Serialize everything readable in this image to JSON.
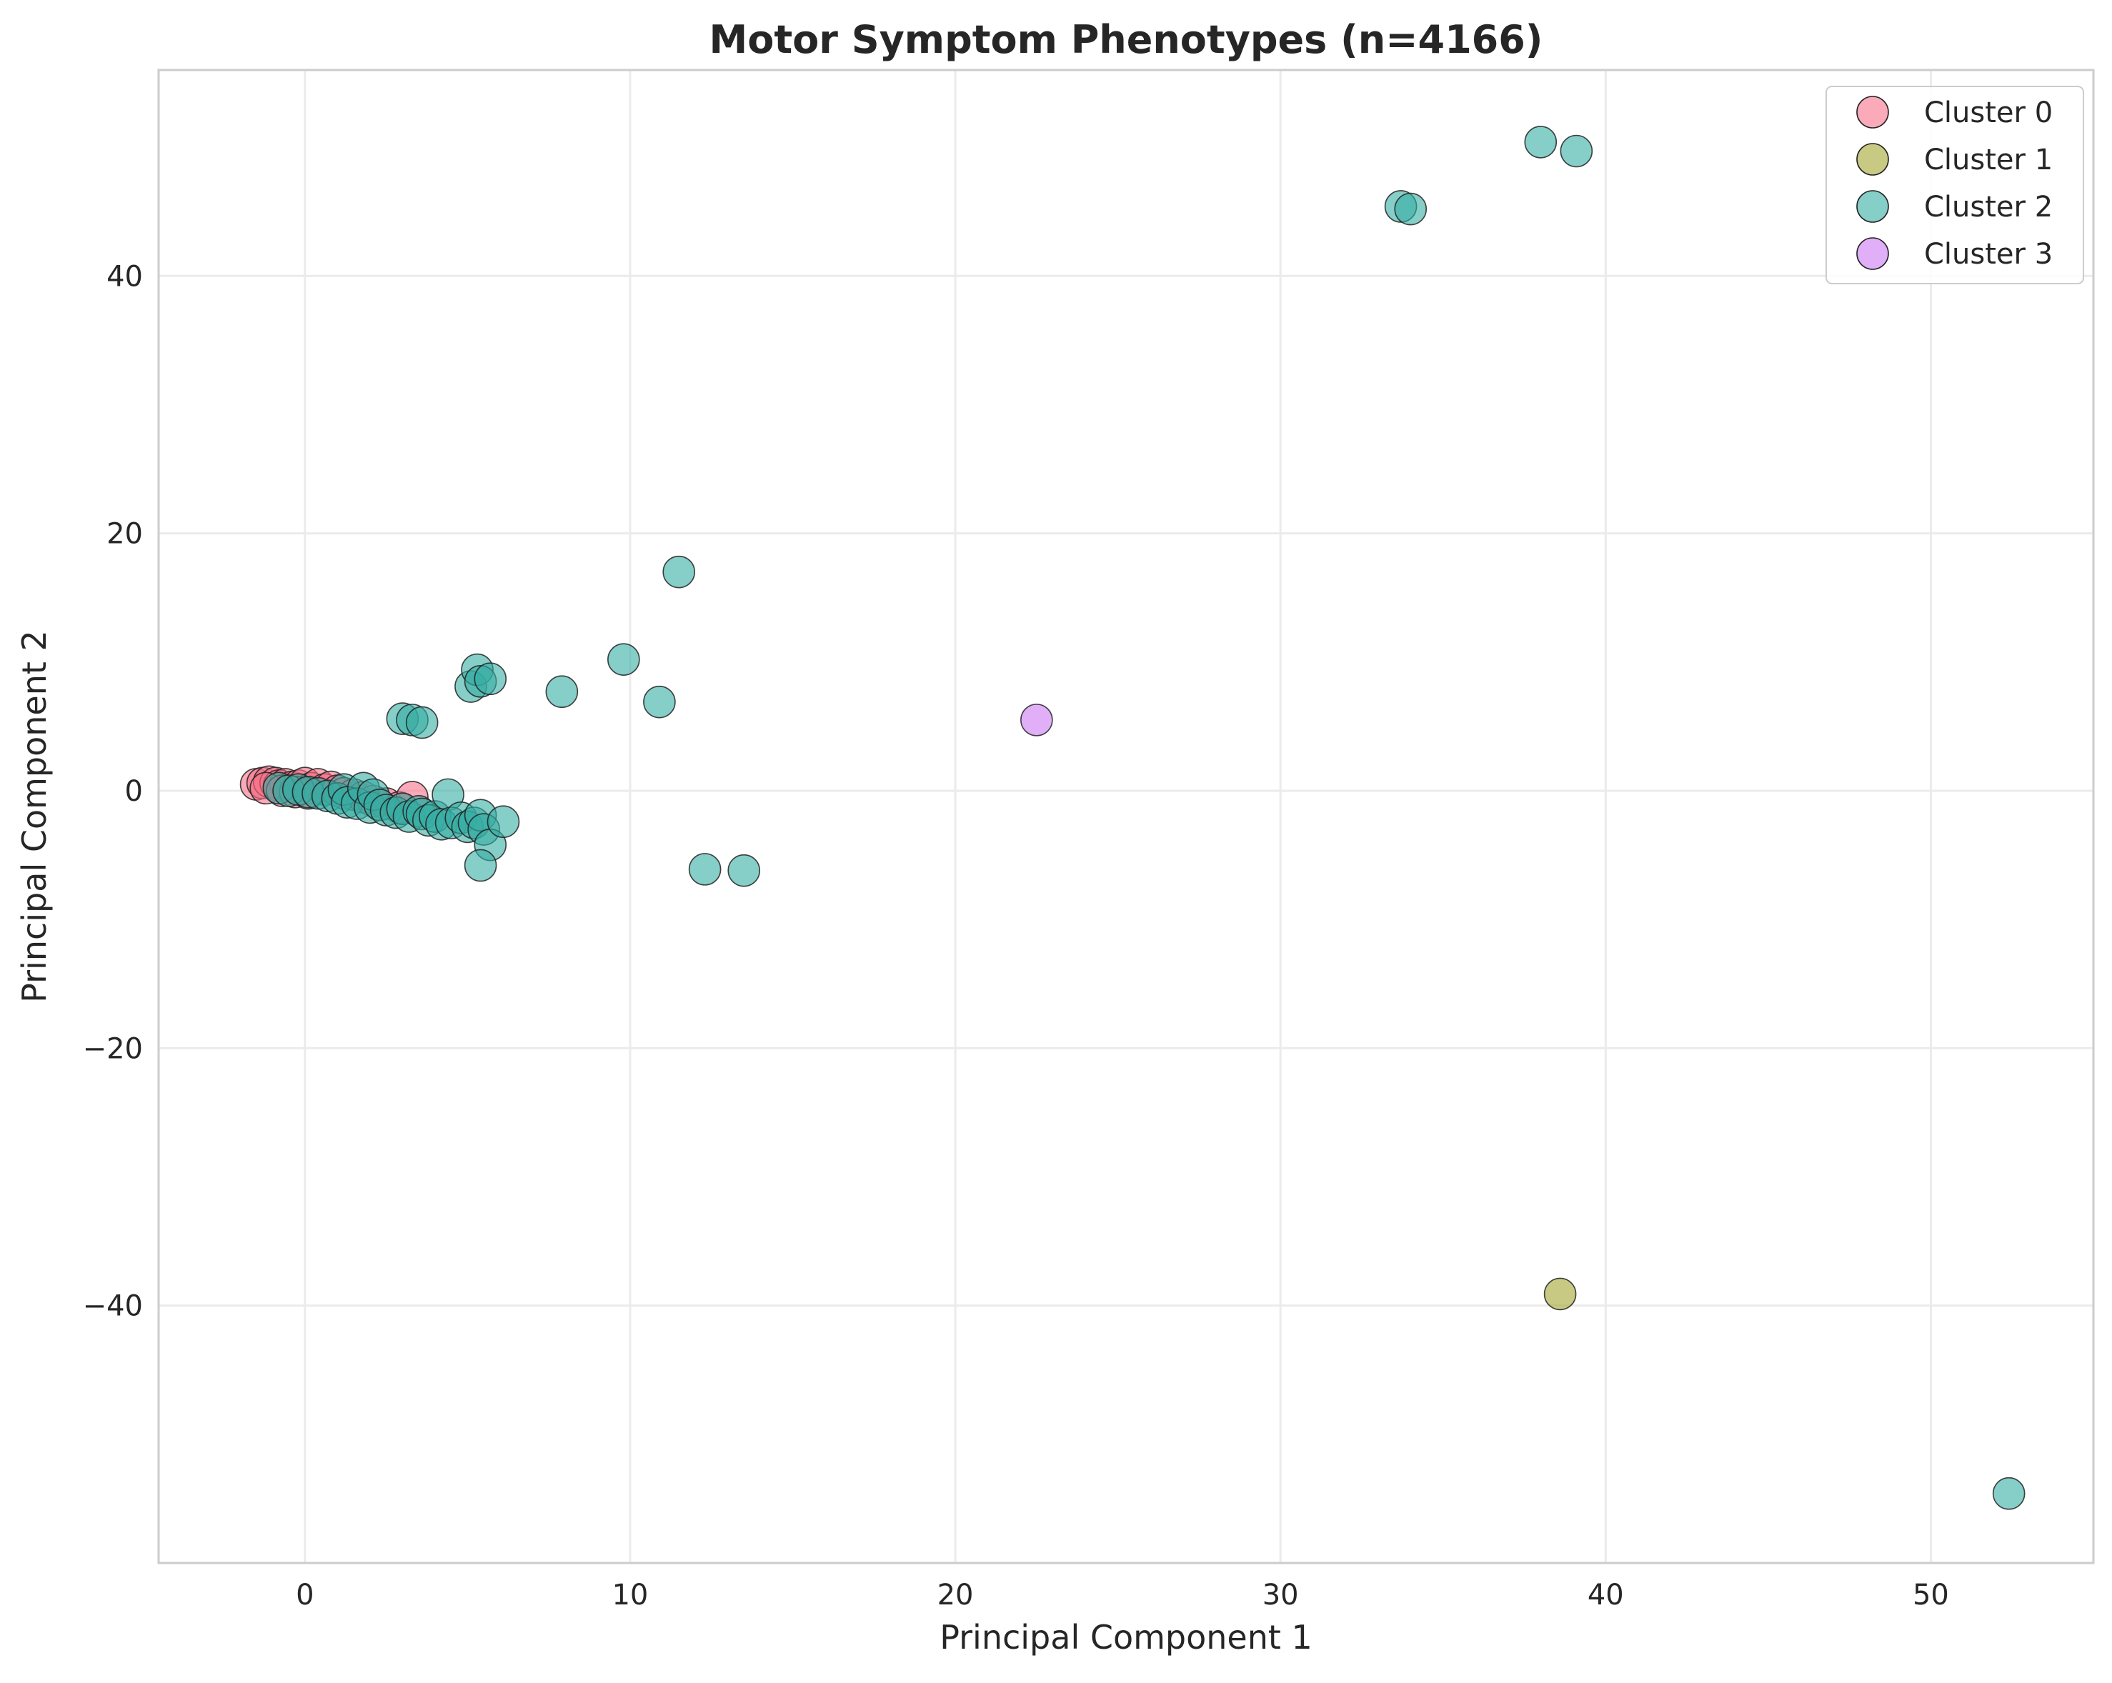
{
  "chart_data": {
    "type": "scatter",
    "title": "Motor Symptom Phenotypes (n=4166)",
    "xlabel": "Principal Component 1",
    "ylabel": "Principal Component 2",
    "xlim": [
      -4.5,
      55
    ],
    "ylim": [
      -60,
      56
    ],
    "xticks": [
      0,
      10,
      20,
      30,
      40,
      50
    ],
    "yticks": [
      -40,
      -20,
      0,
      20,
      40
    ],
    "xtick_labels": [
      "0",
      "10",
      "20",
      "30",
      "40",
      "50"
    ],
    "ytick_labels": [
      "−40",
      "−20",
      "0",
      "20",
      "40"
    ],
    "grid": true,
    "legend_position": "top-right",
    "series": [
      {
        "name": "Cluster 0",
        "color": "#f77189",
        "points": [
          [
            -1.5,
            0.5
          ],
          [
            -1.3,
            0.6
          ],
          [
            -1.1,
            0.7
          ],
          [
            -0.9,
            0.6
          ],
          [
            -0.8,
            0.4
          ],
          [
            -0.6,
            0.5
          ],
          [
            -0.4,
            0.3
          ],
          [
            -0.2,
            0.4
          ],
          [
            0.0,
            0.6
          ],
          [
            0.2,
            0.2
          ],
          [
            0.4,
            0.5
          ],
          [
            0.6,
            0.1
          ],
          [
            0.8,
            0.3
          ],
          [
            1.0,
            0.0
          ],
          [
            1.2,
            -0.2
          ],
          [
            1.5,
            -0.3
          ],
          [
            1.8,
            -0.5
          ],
          [
            2.1,
            -0.8
          ],
          [
            2.5,
            -1.0
          ],
          [
            2.9,
            -1.3
          ],
          [
            3.3,
            -0.5
          ],
          [
            -1.2,
            0.2
          ],
          [
            -0.7,
            0.0
          ],
          [
            -0.3,
            -0.1
          ],
          [
            0.1,
            -0.2
          ]
        ]
      },
      {
        "name": "Cluster 1",
        "color": "#a4a731",
        "points": [
          [
            38.6,
            -39.1
          ]
        ]
      },
      {
        "name": "Cluster 2",
        "color": "#36ada4",
        "points": [
          [
            -0.8,
            0.2
          ],
          [
            -0.5,
            0.0
          ],
          [
            -0.2,
            0.1
          ],
          [
            0.1,
            -0.1
          ],
          [
            0.4,
            -0.2
          ],
          [
            0.7,
            -0.4
          ],
          [
            1.0,
            -0.6
          ],
          [
            1.2,
            0.1
          ],
          [
            1.3,
            -0.9
          ],
          [
            1.6,
            -1.0
          ],
          [
            1.8,
            0.2
          ],
          [
            2.0,
            -1.3
          ],
          [
            2.1,
            -0.3
          ],
          [
            2.3,
            -1.1
          ],
          [
            2.5,
            -1.5
          ],
          [
            2.8,
            -1.7
          ],
          [
            3.0,
            -1.4
          ],
          [
            3.2,
            -2.0
          ],
          [
            3.5,
            -1.6
          ],
          [
            3.6,
            -1.8
          ],
          [
            3.8,
            -2.3
          ],
          [
            4.0,
            -2.0
          ],
          [
            4.2,
            -2.6
          ],
          [
            4.4,
            -0.3
          ],
          [
            4.5,
            -2.5
          ],
          [
            4.8,
            -2.1
          ],
          [
            5.0,
            -2.8
          ],
          [
            5.2,
            -2.5
          ],
          [
            5.4,
            -1.9
          ],
          [
            5.5,
            -3.0
          ],
          [
            5.7,
            -4.2
          ],
          [
            6.1,
            -2.4
          ],
          [
            5.4,
            -5.8
          ],
          [
            3.0,
            5.6
          ],
          [
            3.3,
            5.5
          ],
          [
            3.6,
            5.3
          ],
          [
            5.1,
            8.1
          ],
          [
            5.3,
            9.4
          ],
          [
            5.4,
            8.5
          ],
          [
            5.7,
            8.7
          ],
          [
            7.9,
            7.7
          ],
          [
            9.8,
            10.2
          ],
          [
            10.9,
            6.9
          ],
          [
            11.5,
            17.0
          ],
          [
            12.3,
            -6.1
          ],
          [
            13.5,
            -6.2
          ],
          [
            33.7,
            45.4
          ],
          [
            34.0,
            45.2
          ],
          [
            38.0,
            50.4
          ],
          [
            39.1,
            49.7
          ],
          [
            52.4,
            -54.6
          ]
        ]
      },
      {
        "name": "Cluster 3",
        "color": "#cc7af4",
        "points": [
          [
            22.5,
            5.5
          ]
        ]
      }
    ]
  }
}
